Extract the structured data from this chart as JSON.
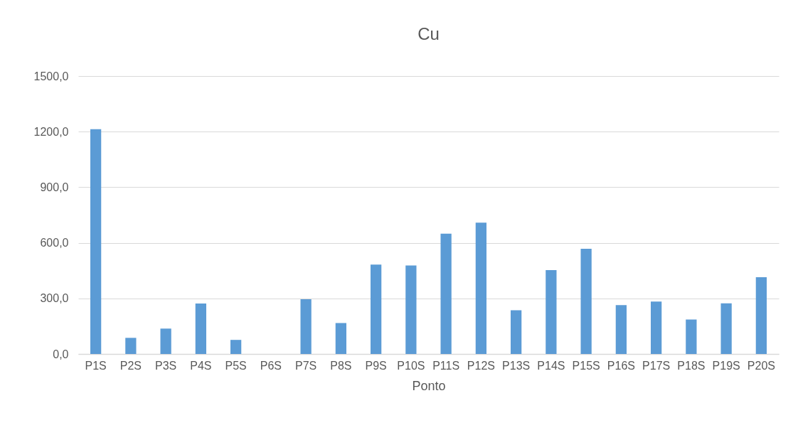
{
  "chart_data": {
    "type": "bar",
    "title": "Cu",
    "xlabel": "Ponto",
    "categories": [
      "P1S",
      "P2S",
      "P3S",
      "P4S",
      "P5S",
      "P6S",
      "P7S",
      "P8S",
      "P9S",
      "P10S",
      "P11S",
      "P12S",
      "P13S",
      "P14S",
      "P15S",
      "P16S",
      "P17S",
      "P18S",
      "P19S",
      "P20S"
    ],
    "values": [
      1213,
      87,
      137,
      272,
      76,
      0,
      295,
      167,
      482,
      478,
      649,
      709,
      236,
      453,
      568,
      264,
      283,
      186,
      273,
      414
    ],
    "color": "#5b9bd5",
    "ylim": [
      0,
      1500
    ],
    "yticks": [
      {
        "value": 0,
        "label": "0,0"
      },
      {
        "value": 300,
        "label": "300,0"
      },
      {
        "value": 600,
        "label": "600,0"
      },
      {
        "value": 900,
        "label": "900,0"
      },
      {
        "value": 1200,
        "label": "1200,0"
      },
      {
        "value": 1500,
        "label": "1500,0"
      }
    ],
    "grid": "y"
  }
}
